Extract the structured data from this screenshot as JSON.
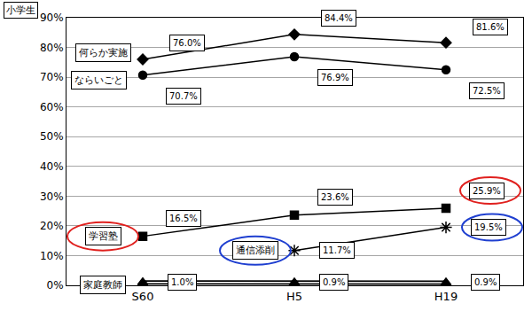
{
  "chart_data": {
    "type": "line",
    "title": "小学生",
    "categories": [
      "S60",
      "H5",
      "H19"
    ],
    "ylim": [
      0,
      90
    ],
    "yticks": [
      {
        "value": 0,
        "label": "0%"
      },
      {
        "value": 10,
        "label": "10%"
      },
      {
        "value": 20,
        "label": "20%"
      },
      {
        "value": 30,
        "label": "30%"
      },
      {
        "value": 40,
        "label": "40%"
      },
      {
        "value": 50,
        "label": "50%"
      },
      {
        "value": 60,
        "label": "60%"
      },
      {
        "value": 70,
        "label": "70%"
      },
      {
        "value": 80,
        "label": "80%"
      },
      {
        "value": 90,
        "label": "90%"
      }
    ],
    "grid": true,
    "data_labels": true,
    "series": [
      {
        "name": "何らか実施",
        "color": "#000000",
        "marker": "diamond",
        "line_style": "solid",
        "values": [
          76.0,
          84.4,
          81.6
        ],
        "value_labels": [
          "76.0%",
          "84.4%",
          "81.6%"
        ]
      },
      {
        "name": "ならいごと",
        "color": "#000000",
        "marker": "circle",
        "line_style": "solid",
        "values": [
          70.7,
          76.9,
          72.5
        ],
        "value_labels": [
          "70.7%",
          "76.9%",
          "72.5%"
        ]
      },
      {
        "name": "学習塾",
        "color": "#000000",
        "marker": "square",
        "line_style": "solid",
        "values": [
          16.5,
          23.6,
          25.9
        ],
        "value_labels": [
          "16.5%",
          "23.6%",
          "25.9%"
        ]
      },
      {
        "name": "通信添削",
        "color": "#000000",
        "marker": "asterisk",
        "line_style": "solid",
        "values": [
          null,
          11.7,
          19.5
        ],
        "value_labels": [
          null,
          "11.7%",
          "19.5%"
        ]
      },
      {
        "name": "家庭教師",
        "color": "#000000",
        "marker": "triangle",
        "line_style": "double",
        "values": [
          1.0,
          0.9,
          0.9
        ],
        "value_labels": [
          "1.0%",
          "0.9%",
          "0.9%"
        ]
      }
    ]
  }
}
